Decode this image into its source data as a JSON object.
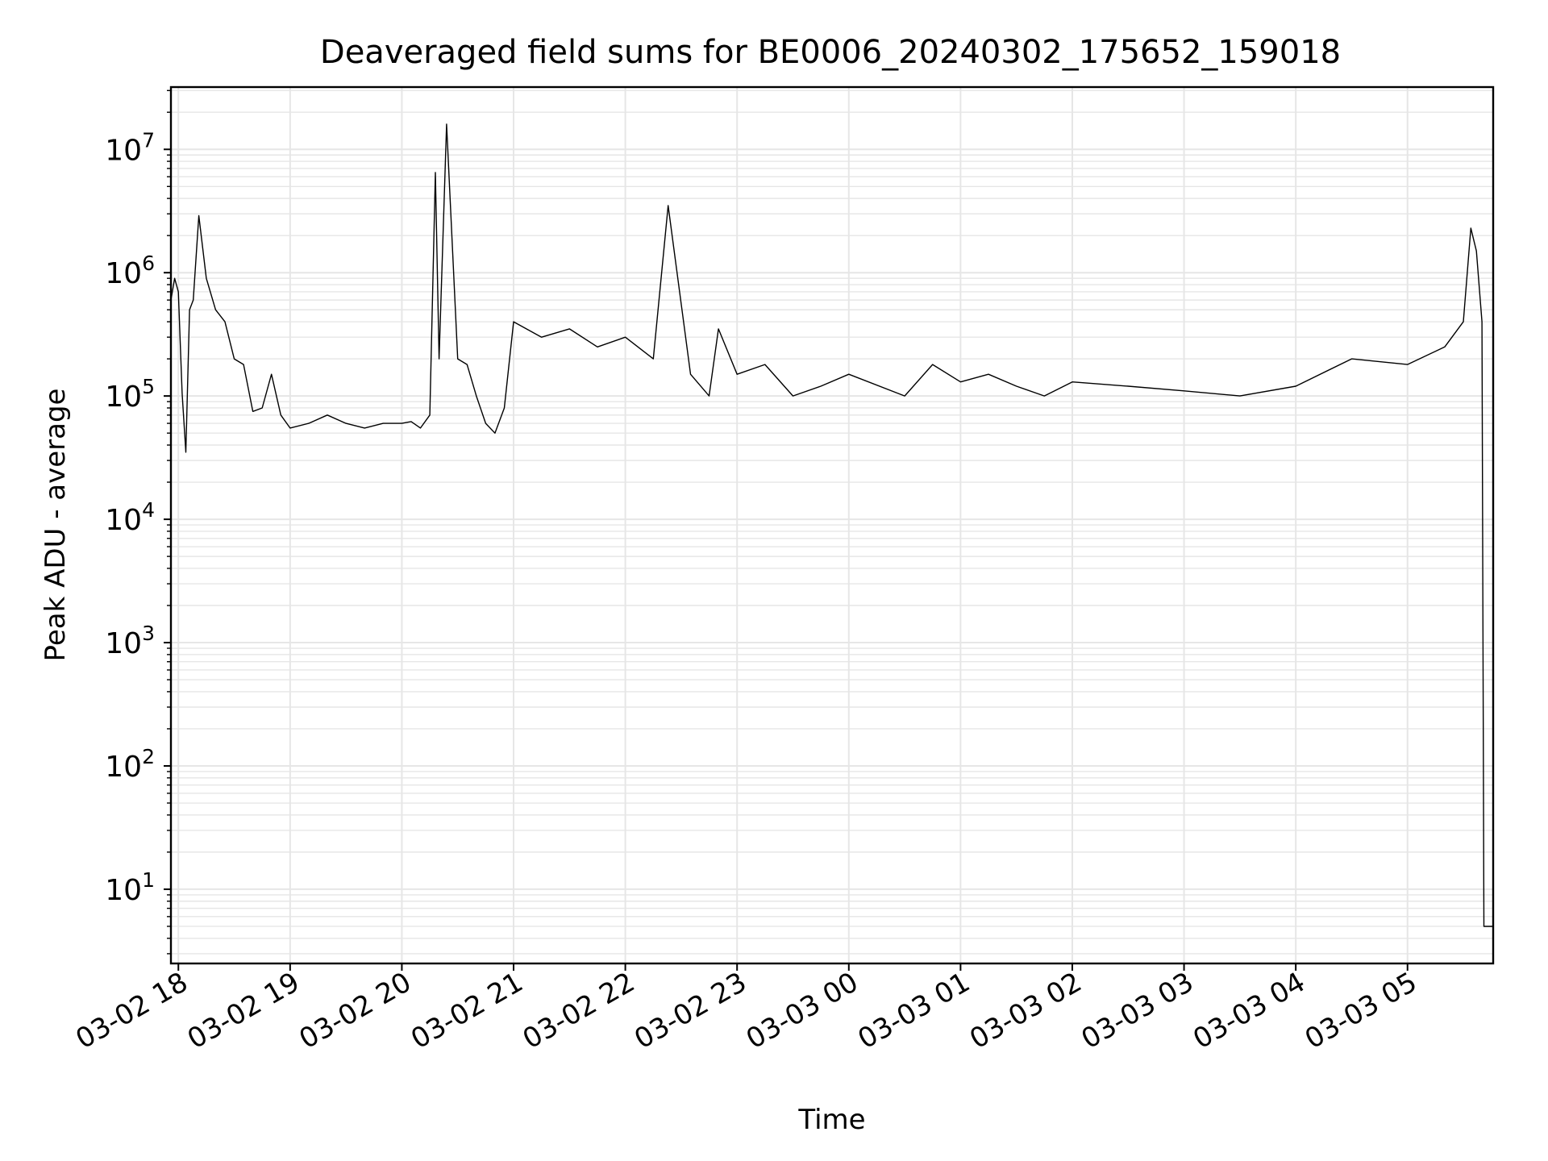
{
  "chart_data": {
    "type": "line",
    "title": "Deaveraged field sums for BE0006_20240302_175652_159018",
    "xlabel": "Time",
    "ylabel": "Peak ADU - average",
    "yscale": "log",
    "grid": true,
    "legend": "none",
    "line_color": "#000000",
    "grid_color": "#e6e6e6",
    "xlim": [
      "2024-03-02 17:56",
      "2024-03-03 05:46"
    ],
    "ylim": [
      2.5,
      32000000.0
    ],
    "x_ticks": [
      "2024-03-02 18:00",
      "2024-03-02 19:00",
      "2024-03-02 20:00",
      "2024-03-02 21:00",
      "2024-03-02 22:00",
      "2024-03-02 23:00",
      "2024-03-03 00:00",
      "2024-03-03 01:00",
      "2024-03-03 02:00",
      "2024-03-03 03:00",
      "2024-03-03 04:00",
      "2024-03-03 05:00"
    ],
    "x_tick_labels": [
      "03-02 18",
      "03-02 19",
      "03-02 20",
      "03-02 21",
      "03-02 22",
      "03-02 23",
      "03-03 00",
      "03-03 01",
      "03-03 02",
      "03-03 03",
      "03-03 04",
      "03-03 05"
    ],
    "y_ticks": [
      10,
      100,
      1000,
      10000,
      100000,
      1000000,
      10000000
    ],
    "y_tick_bases": [
      "10",
      "10",
      "10",
      "10",
      "10",
      "10",
      "10"
    ],
    "y_tick_exponents": [
      "1",
      "2",
      "3",
      "4",
      "5",
      "6",
      "7"
    ],
    "series": [
      {
        "x": [
          "2024-03-02 17:56",
          "2024-03-02 17:58",
          "2024-03-02 18:00",
          "2024-03-02 18:02",
          "2024-03-02 18:04",
          "2024-03-02 18:06",
          "2024-03-02 18:08",
          "2024-03-02 18:11",
          "2024-03-02 18:15",
          "2024-03-02 18:20",
          "2024-03-02 18:25",
          "2024-03-02 18:30",
          "2024-03-02 18:35",
          "2024-03-02 18:40",
          "2024-03-02 18:45",
          "2024-03-02 18:50",
          "2024-03-02 18:55",
          "2024-03-02 19:00",
          "2024-03-02 19:10",
          "2024-03-02 19:20",
          "2024-03-02 19:30",
          "2024-03-02 19:40",
          "2024-03-02 19:50",
          "2024-03-02 20:00",
          "2024-03-02 20:05",
          "2024-03-02 20:10",
          "2024-03-02 20:15",
          "2024-03-02 20:18",
          "2024-03-02 20:20",
          "2024-03-02 20:24",
          "2024-03-02 20:30",
          "2024-03-02 20:35",
          "2024-03-02 20:40",
          "2024-03-02 20:45",
          "2024-03-02 20:50",
          "2024-03-02 20:55",
          "2024-03-02 21:00",
          "2024-03-02 21:15",
          "2024-03-02 21:30",
          "2024-03-02 21:45",
          "2024-03-02 22:00",
          "2024-03-02 22:15",
          "2024-03-02 22:23",
          "2024-03-02 22:35",
          "2024-03-02 22:45",
          "2024-03-02 22:50",
          "2024-03-02 23:00",
          "2024-03-02 23:15",
          "2024-03-02 23:30",
          "2024-03-02 23:45",
          "2024-03-03 00:00",
          "2024-03-03 00:30",
          "2024-03-03 00:45",
          "2024-03-03 01:00",
          "2024-03-03 01:15",
          "2024-03-03 01:30",
          "2024-03-03 01:45",
          "2024-03-03 02:00",
          "2024-03-03 02:30",
          "2024-03-03 03:00",
          "2024-03-03 03:30",
          "2024-03-03 04:00",
          "2024-03-03 04:30",
          "2024-03-03 05:00",
          "2024-03-03 05:20",
          "2024-03-03 05:30",
          "2024-03-03 05:34",
          "2024-03-03 05:37",
          "2024-03-03 05:40",
          "2024-03-03 05:41",
          "2024-03-03 05:43",
          "2024-03-03 05:46"
        ],
        "y": [
          600000,
          900000,
          700000,
          105000,
          35000,
          500000,
          600000,
          2900000,
          900000,
          500000,
          400000,
          200000,
          180000,
          75000,
          80000,
          150000,
          70000,
          55000,
          60000,
          70000,
          60000,
          55000,
          60000,
          60000,
          62000,
          55000,
          70000,
          6500000,
          200000,
          16000000,
          200000,
          180000,
          100000,
          60000,
          50000,
          80000,
          400000,
          300000,
          350000,
          250000,
          300000,
          200000,
          3500000,
          150000,
          100000,
          350000,
          150000,
          180000,
          100000,
          120000,
          150000,
          100000,
          180000,
          130000,
          150000,
          120000,
          100000,
          130000,
          120000,
          110000,
          100000,
          120000,
          200000,
          180000,
          250000,
          400000,
          2300000,
          1500000,
          400000,
          5,
          5,
          5
        ]
      }
    ]
  }
}
